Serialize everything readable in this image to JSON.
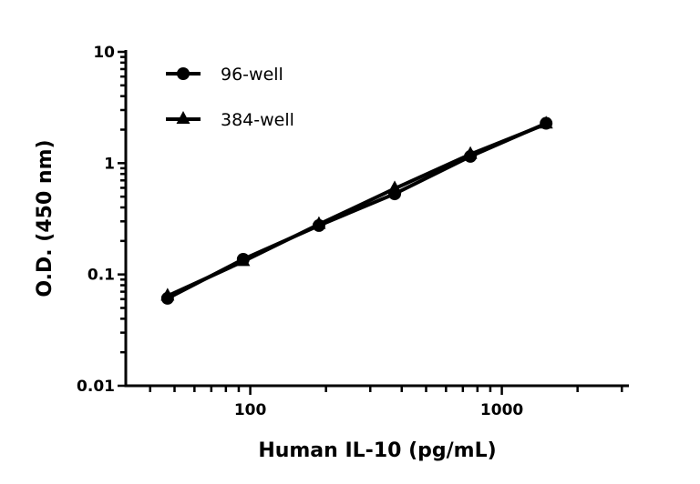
{
  "chart_data": {
    "type": "line",
    "title": "",
    "xlabel": "Human IL-10 (pg/mL)",
    "ylabel": "O.D. (450 nm)",
    "xscale": "log",
    "yscale": "log",
    "xlim": [
      32,
      3200
    ],
    "ylim": [
      0.01,
      10
    ],
    "xticks": [
      100,
      1000
    ],
    "xtick_labels": [
      "100",
      "1000"
    ],
    "yticks": [
      0.01,
      0.1,
      1,
      10
    ],
    "ytick_labels": [
      "0.01",
      "0.1",
      "1",
      "10"
    ],
    "grid": false,
    "legend": "top-left",
    "x": [
      46.9,
      93.75,
      187.5,
      375,
      750,
      1500
    ],
    "series": [
      {
        "name": "96-well",
        "marker": "circle",
        "color": "#000000",
        "values": [
          0.061,
          0.137,
          0.275,
          0.53,
          1.15,
          2.28
        ]
      },
      {
        "name": "384-well",
        "marker": "triangle",
        "color": "#000000",
        "values": [
          0.064,
          0.131,
          0.282,
          0.59,
          1.2,
          2.25
        ]
      }
    ]
  }
}
